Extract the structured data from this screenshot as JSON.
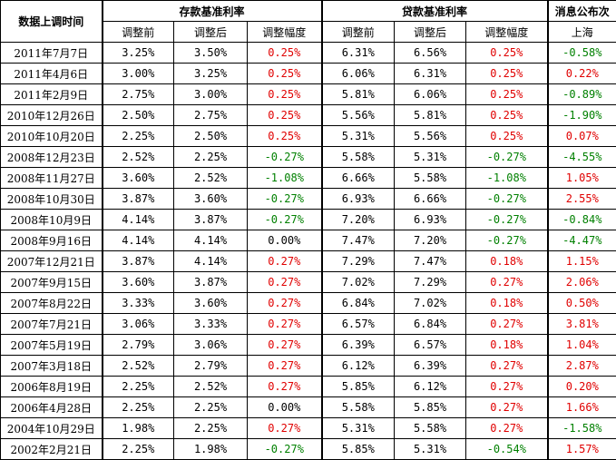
{
  "header": {
    "date_col": "数据上调时间",
    "deposit_group": "存款基准利率",
    "loan_group": "贷款基准利率",
    "news_group": "消息公布次",
    "deposit_sub": [
      "调整前",
      "调整后",
      "调整幅度"
    ],
    "loan_sub": [
      "调整前",
      "调整后",
      "调整幅度"
    ],
    "news_sub": "上海"
  },
  "colors": {
    "positive": "#e00000",
    "negative": "#008000",
    "neutral": "#000000"
  },
  "rows": [
    {
      "date": "2011年7月7日",
      "dep_before": "3.25%",
      "dep_after": "3.50%",
      "dep_change": "0.25%",
      "loan_before": "6.31%",
      "loan_after": "6.56%",
      "loan_change": "0.25%",
      "shanghai": "-0.58%"
    },
    {
      "date": "2011年4月6日",
      "dep_before": "3.00%",
      "dep_after": "3.25%",
      "dep_change": "0.25%",
      "loan_before": "6.06%",
      "loan_after": "6.31%",
      "loan_change": "0.25%",
      "shanghai": "0.22%"
    },
    {
      "date": "2011年2月9日",
      "dep_before": "2.75%",
      "dep_after": "3.00%",
      "dep_change": "0.25%",
      "loan_before": "5.81%",
      "loan_after": "6.06%",
      "loan_change": "0.25%",
      "shanghai": "-0.89%"
    },
    {
      "date": "2010年12月26日",
      "dep_before": "2.50%",
      "dep_after": "2.75%",
      "dep_change": "0.25%",
      "loan_before": "5.56%",
      "loan_after": "5.81%",
      "loan_change": "0.25%",
      "shanghai": "-1.90%"
    },
    {
      "date": "2010年10月20日",
      "dep_before": "2.25%",
      "dep_after": "2.50%",
      "dep_change": "0.25%",
      "loan_before": "5.31%",
      "loan_after": "5.56%",
      "loan_change": "0.25%",
      "shanghai": "0.07%"
    },
    {
      "date": "2008年12月23日",
      "dep_before": "2.52%",
      "dep_after": "2.25%",
      "dep_change": "-0.27%",
      "loan_before": "5.58%",
      "loan_after": "5.31%",
      "loan_change": "-0.27%",
      "shanghai": "-4.55%"
    },
    {
      "date": "2008年11月27日",
      "dep_before": "3.60%",
      "dep_after": "2.52%",
      "dep_change": "-1.08%",
      "loan_before": "6.66%",
      "loan_after": "5.58%",
      "loan_change": "-1.08%",
      "shanghai": "1.05%"
    },
    {
      "date": "2008年10月30日",
      "dep_before": "3.87%",
      "dep_after": "3.60%",
      "dep_change": "-0.27%",
      "loan_before": "6.93%",
      "loan_after": "6.66%",
      "loan_change": "-0.27%",
      "shanghai": "2.55%"
    },
    {
      "date": "2008年10月9日",
      "dep_before": "4.14%",
      "dep_after": "3.87%",
      "dep_change": "-0.27%",
      "loan_before": "7.20%",
      "loan_after": "6.93%",
      "loan_change": "-0.27%",
      "shanghai": "-0.84%"
    },
    {
      "date": "2008年9月16日",
      "dep_before": "4.14%",
      "dep_after": "4.14%",
      "dep_change": "0.00%",
      "loan_before": "7.47%",
      "loan_after": "7.20%",
      "loan_change": "-0.27%",
      "shanghai": "-4.47%"
    },
    {
      "date": "2007年12月21日",
      "dep_before": "3.87%",
      "dep_after": "4.14%",
      "dep_change": "0.27%",
      "loan_before": "7.29%",
      "loan_after": "7.47%",
      "loan_change": "0.18%",
      "shanghai": "1.15%"
    },
    {
      "date": "2007年9月15日",
      "dep_before": "3.60%",
      "dep_after": "3.87%",
      "dep_change": "0.27%",
      "loan_before": "7.02%",
      "loan_after": "7.29%",
      "loan_change": "0.27%",
      "shanghai": "2.06%"
    },
    {
      "date": "2007年8月22日",
      "dep_before": "3.33%",
      "dep_after": "3.60%",
      "dep_change": "0.27%",
      "loan_before": "6.84%",
      "loan_after": "7.02%",
      "loan_change": "0.18%",
      "shanghai": "0.50%"
    },
    {
      "date": "2007年7月21日",
      "dep_before": "3.06%",
      "dep_after": "3.33%",
      "dep_change": "0.27%",
      "loan_before": "6.57%",
      "loan_after": "6.84%",
      "loan_change": "0.27%",
      "shanghai": "3.81%"
    },
    {
      "date": "2007年5月19日",
      "dep_before": "2.79%",
      "dep_after": "3.06%",
      "dep_change": "0.27%",
      "loan_before": "6.39%",
      "loan_after": "6.57%",
      "loan_change": "0.18%",
      "shanghai": "1.04%"
    },
    {
      "date": "2007年3月18日",
      "dep_before": "2.52%",
      "dep_after": "2.79%",
      "dep_change": "0.27%",
      "loan_before": "6.12%",
      "loan_after": "6.39%",
      "loan_change": "0.27%",
      "shanghai": "2.87%"
    },
    {
      "date": "2006年8月19日",
      "dep_before": "2.25%",
      "dep_after": "2.52%",
      "dep_change": "0.27%",
      "loan_before": "5.85%",
      "loan_after": "6.12%",
      "loan_change": "0.27%",
      "shanghai": "0.20%"
    },
    {
      "date": "2006年4月28日",
      "dep_before": "2.25%",
      "dep_after": "2.25%",
      "dep_change": "0.00%",
      "loan_before": "5.58%",
      "loan_after": "5.85%",
      "loan_change": "0.27%",
      "shanghai": "1.66%"
    },
    {
      "date": "2004年10月29日",
      "dep_before": "1.98%",
      "dep_after": "2.25%",
      "dep_change": "0.27%",
      "loan_before": "5.31%",
      "loan_after": "5.58%",
      "loan_change": "0.27%",
      "shanghai": "-1.58%"
    },
    {
      "date": "2002年2月21日",
      "dep_before": "2.25%",
      "dep_after": "1.98%",
      "dep_change": "-0.27%",
      "loan_before": "5.85%",
      "loan_after": "5.31%",
      "loan_change": "-0.54%",
      "shanghai": "1.57%"
    }
  ]
}
